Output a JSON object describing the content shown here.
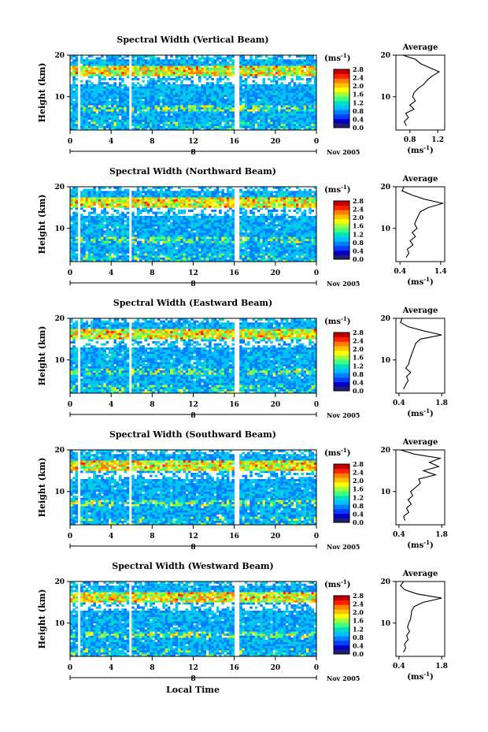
{
  "figure": {
    "xlabel": "Local Time",
    "unit_label": "(ms",
    "unit_exp": "-1",
    "date_label": "Nov 2005",
    "day_label": "8",
    "colorbar_ticks": [
      "0.0",
      "0.4",
      "0.8",
      "1.2",
      "1.6",
      "2.0",
      "2.4",
      "2.8"
    ],
    "colors": {
      "colormap": [
        "#202070",
        "#0000c8",
        "#0040ff",
        "#0080ff",
        "#00c0ff",
        "#00e0c0",
        "#40ff80",
        "#a0ff40",
        "#ffff00",
        "#ffc000",
        "#ff8000",
        "#ff2000",
        "#c00000"
      ],
      "background": "#ffffff",
      "line": "#000000"
    }
  },
  "chart_data": [
    {
      "type": "heatmap",
      "title": "Spectral Width (Vertical Beam)",
      "ylabel": "Height (km)",
      "xticks": [
        "0",
        "4",
        "8",
        "12",
        "16",
        "20",
        "0"
      ],
      "yticks": [
        "10",
        "20"
      ],
      "xlim": [
        0,
        24
      ],
      "ylim": [
        2,
        20
      ],
      "data_gaps_hours": [
        [
          0.7,
          1.1
        ],
        [
          5.8,
          6.1
        ],
        [
          15.9,
          16.4
        ]
      ],
      "clim": [
        0.0,
        2.8
      ],
      "profile": {
        "title": "Average",
        "xticks": [
          "0.8",
          "1.2"
        ],
        "xlim": [
          0.6,
          1.3
        ],
        "xlabel": "(ms",
        "heights": [
          3,
          4,
          5,
          6,
          7,
          8,
          9,
          10,
          11,
          12,
          13,
          14,
          15,
          16,
          17,
          18,
          19,
          20
        ],
        "values": [
          0.75,
          0.72,
          0.78,
          0.74,
          0.86,
          0.8,
          0.88,
          0.84,
          0.86,
          0.92,
          1.0,
          1.05,
          1.12,
          1.22,
          1.08,
          0.95,
          0.88,
          0.7
        ]
      }
    },
    {
      "type": "heatmap",
      "title": "Spectral Width (Northward Beam)",
      "ylabel": "Height (km)",
      "xticks": [
        "0",
        "4",
        "8",
        "12",
        "16",
        "20",
        "0"
      ],
      "yticks": [
        "10",
        "20"
      ],
      "xlim": [
        0,
        24
      ],
      "ylim": [
        2,
        20
      ],
      "data_gaps_hours": [
        [
          0.7,
          1.1
        ],
        [
          5.8,
          6.1
        ],
        [
          15.9,
          16.4
        ]
      ],
      "clim": [
        0.0,
        2.8
      ],
      "profile": {
        "title": "Average",
        "xticks": [
          "0.4",
          "1.4"
        ],
        "xlim": [
          0.3,
          1.5
        ],
        "xlabel": "(ms",
        "heights": [
          3,
          4,
          5,
          6,
          7,
          8,
          9,
          10,
          11,
          12,
          13,
          14,
          15,
          16,
          17,
          18,
          19,
          20
        ],
        "values": [
          0.55,
          0.62,
          0.58,
          0.72,
          0.65,
          0.78,
          0.7,
          0.82,
          0.76,
          0.8,
          0.85,
          0.9,
          1.1,
          1.45,
          1.0,
          0.7,
          0.45,
          0.5
        ]
      }
    },
    {
      "type": "heatmap",
      "title": "Spectral Width (Eastward Beam)",
      "ylabel": "Height (km)",
      "xticks": [
        "0",
        "4",
        "8",
        "12",
        "16",
        "20",
        "0"
      ],
      "yticks": [
        "10",
        "20"
      ],
      "xlim": [
        0,
        24
      ],
      "ylim": [
        2,
        20
      ],
      "data_gaps_hours": [
        [
          0.7,
          1.1
        ],
        [
          5.8,
          6.1
        ],
        [
          15.9,
          16.4
        ]
      ],
      "clim": [
        0.0,
        2.8
      ],
      "profile": {
        "title": "Average",
        "xticks": [
          "0.4",
          "1.8"
        ],
        "xlim": [
          0.3,
          1.9
        ],
        "xlabel": "(ms",
        "heights": [
          3,
          4,
          5,
          6,
          7,
          8,
          9,
          10,
          11,
          12,
          13,
          14,
          15,
          16,
          17,
          18,
          19,
          20
        ],
        "values": [
          0.55,
          0.62,
          0.7,
          0.65,
          0.78,
          0.62,
          0.72,
          0.75,
          0.8,
          0.85,
          0.9,
          0.95,
          1.1,
          1.8,
          1.2,
          0.7,
          0.45,
          0.5
        ]
      }
    },
    {
      "type": "heatmap",
      "title": "Spectral Width (Southward Beam)",
      "ylabel": "Height (km)",
      "xticks": [
        "0",
        "4",
        "8",
        "12",
        "16",
        "20",
        "0"
      ],
      "yticks": [
        "10",
        "20"
      ],
      "xlim": [
        0,
        24
      ],
      "ylim": [
        2,
        20
      ],
      "data_gaps_hours": [
        [
          0.7,
          1.1
        ],
        [
          5.8,
          6.1
        ],
        [
          15.9,
          16.4
        ]
      ],
      "clim": [
        0.0,
        2.8
      ],
      "profile": {
        "title": "Average",
        "xticks": [
          "0.4",
          "1.8"
        ],
        "xlim": [
          0.3,
          1.9
        ],
        "xlabel": "(ms",
        "heights": [
          3,
          4,
          5,
          6,
          7,
          8,
          9,
          10,
          11,
          12,
          13,
          14,
          15,
          16,
          17,
          18,
          19,
          20
        ],
        "values": [
          0.6,
          0.55,
          0.72,
          0.65,
          0.8,
          0.7,
          0.85,
          0.78,
          0.95,
          1.1,
          1.05,
          1.6,
          1.2,
          1.7,
          1.4,
          1.75,
          0.9,
          0.45
        ]
      }
    },
    {
      "type": "heatmap",
      "title": "Spectral Width (Westward Beam)",
      "ylabel": "Height (km)",
      "xticks": [
        "0",
        "4",
        "8",
        "12",
        "16",
        "20",
        "0"
      ],
      "yticks": [
        "10",
        "20"
      ],
      "xlim": [
        0,
        24
      ],
      "ylim": [
        2,
        20
      ],
      "data_gaps_hours": [
        [
          0.7,
          1.1
        ],
        [
          5.8,
          6.1
        ],
        [
          15.9,
          16.4
        ]
      ],
      "clim": [
        0.0,
        2.8
      ],
      "profile": {
        "title": "Average",
        "xticks": [
          "0.4",
          "1.8"
        ],
        "xlim": [
          0.3,
          1.9
        ],
        "xlabel": "(ms",
        "heights": [
          3,
          4,
          5,
          6,
          7,
          8,
          9,
          10,
          11,
          12,
          13,
          14,
          15,
          16,
          17,
          18,
          19,
          20
        ],
        "values": [
          0.55,
          0.62,
          0.58,
          0.7,
          0.65,
          0.75,
          0.68,
          0.72,
          0.78,
          0.8,
          0.82,
          0.9,
          1.2,
          1.8,
          1.0,
          0.6,
          0.45,
          0.55
        ]
      }
    }
  ]
}
